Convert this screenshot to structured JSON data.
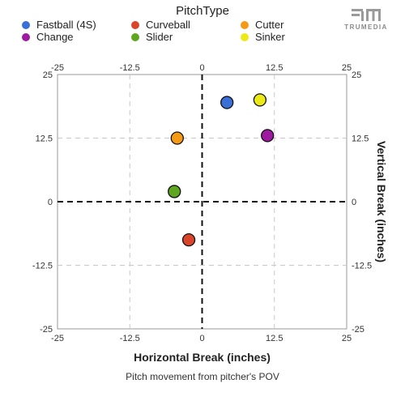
{
  "legend": {
    "title": "PitchType",
    "items": [
      {
        "name": "Fastball (4S)",
        "color": "#3a6fd8"
      },
      {
        "name": "Curveball",
        "color": "#d9442a"
      },
      {
        "name": "Cutter",
        "color": "#f59a17"
      },
      {
        "name": "Change",
        "color": "#9e1aa0"
      },
      {
        "name": "Slider",
        "color": "#5ea620"
      },
      {
        "name": "Sinker",
        "color": "#ecea16"
      }
    ]
  },
  "brand": {
    "name": "TRUMEDIA"
  },
  "caption": "Pitch movement from pitcher's POV",
  "chart_data": {
    "type": "scatter",
    "xlabel": "Horizontal Break (inches)",
    "ylabel": "Vertical Break (inches)",
    "xlim": [
      -25,
      25
    ],
    "ylim": [
      -25,
      25
    ],
    "xticks": [
      "-25",
      "-12.5",
      "0",
      "12.5",
      "25"
    ],
    "yticks": [
      "25",
      "12.5",
      "0",
      "-12.5",
      "-25"
    ],
    "grid": true,
    "legend_position": "top",
    "series": [
      {
        "name": "Fastball (4S)",
        "x": [
          4.3
        ],
        "y": [
          19.5
        ],
        "color": "#3a6fd8"
      },
      {
        "name": "Curveball",
        "x": [
          -2.3
        ],
        "y": [
          -7.5
        ],
        "color": "#d9442a"
      },
      {
        "name": "Cutter",
        "x": [
          -4.3
        ],
        "y": [
          12.5
        ],
        "color": "#f59a17"
      },
      {
        "name": "Change",
        "x": [
          11.3
        ],
        "y": [
          13.0
        ],
        "color": "#9e1aa0"
      },
      {
        "name": "Slider",
        "x": [
          -4.8
        ],
        "y": [
          2.0
        ],
        "color": "#5ea620"
      },
      {
        "name": "Sinker",
        "x": [
          10.0
        ],
        "y": [
          20.0
        ],
        "color": "#ecea16"
      }
    ]
  }
}
